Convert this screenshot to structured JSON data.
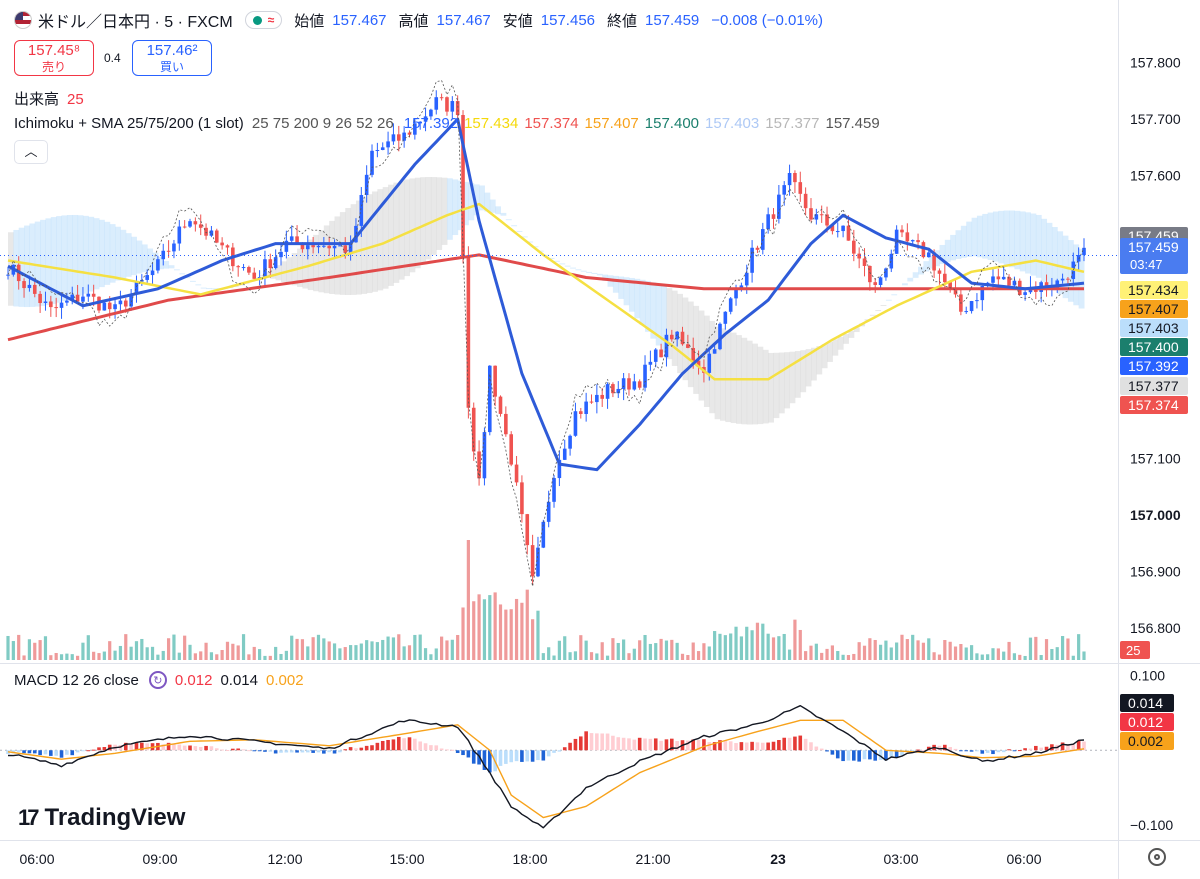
{
  "header": {
    "symbol": "米ドル／日本円 · 5 · FXCM",
    "open_label": "始値",
    "open": "157.467",
    "high_label": "高値",
    "high": "157.467",
    "low_label": "安値",
    "low": "157.456",
    "close_label": "終値",
    "close": "157.459",
    "change": "−0.008 (−0.01%)"
  },
  "trade": {
    "sell_price": "157.45⁸",
    "sell_label": "売り",
    "spread": "0.4",
    "buy_price": "157.46²",
    "buy_label": "買い"
  },
  "volume_label": {
    "name": "出来高",
    "value": "25"
  },
  "indicator": {
    "name": "Ichimoku + SMA 25/75/200 (1 slot)",
    "params": "25 75 200 9 26 52 26",
    "values": [
      {
        "v": "157.392",
        "color": "#2962ff"
      },
      {
        "v": "157.434",
        "color": "#f5d90a"
      },
      {
        "v": "157.374",
        "color": "#ef5350"
      },
      {
        "v": "157.407",
        "color": "#f7a21b"
      },
      {
        "v": "157.400",
        "color": "#1b7f6d"
      },
      {
        "v": "157.403",
        "color": "#aec9f5"
      },
      {
        "v": "157.377",
        "color": "#b7b7b7"
      },
      {
        "v": "157.459",
        "color": "#555555"
      }
    ]
  },
  "macd": {
    "label": "MACD",
    "params": "12 26 close",
    "hist": "0.012",
    "macd": "0.014",
    "signal": "0.002"
  },
  "brand": "TradingView",
  "chart_data": {
    "type": "candlestick",
    "price_axis_ticks": [
      "157.800",
      "157.700",
      "157.600",
      "157.459",
      "157.100",
      "157.000",
      "156.900",
      "156.800"
    ],
    "price_ylim": [
      156.74,
      157.84
    ],
    "time_ticks": [
      "06:00",
      "09:00",
      "12:00",
      "15:00",
      "18:00",
      "21:00",
      "23",
      "03:00",
      "06:00"
    ],
    "price_labels": [
      {
        "text": "157.459",
        "bg": "#787b86",
        "fg": "#ffffff"
      },
      {
        "text": "157.459",
        "sub": "03:47",
        "bg": "#4a7cf0",
        "fg": "#ffffff"
      },
      {
        "text": "157.434",
        "bg": "#fff176",
        "fg": "#131722"
      },
      {
        "text": "157.407",
        "bg": "#f7a21b",
        "fg": "#131722"
      },
      {
        "text": "157.403",
        "bg": "#bbdefb",
        "fg": "#131722"
      },
      {
        "text": "157.400",
        "bg": "#1b7f6d",
        "fg": "#ffffff"
      },
      {
        "text": "157.392",
        "bg": "#2962ff",
        "fg": "#ffffff"
      },
      {
        "text": "157.377",
        "bg": "#e0e0e0",
        "fg": "#131722"
      },
      {
        "text": "157.374",
        "bg": "#ef5350",
        "fg": "#ffffff"
      }
    ],
    "volume_last_label": "25",
    "macd_ticks": [
      "0.100",
      "−0.100"
    ],
    "macd_ylim": [
      -0.12,
      0.11
    ],
    "macd_labels": [
      {
        "text": "0.014",
        "bg": "#131722",
        "fg": "#ffffff"
      },
      {
        "text": "0.012",
        "bg": "#f23645",
        "fg": "#ffffff"
      },
      {
        "text": "0.002",
        "bg": "#f7a21b",
        "fg": "#131722"
      }
    ],
    "series_price_keys": [
      {
        "i": 0,
        "p": 157.44
      },
      {
        "i": 8,
        "p": 157.36
      },
      {
        "i": 14,
        "p": 157.39
      },
      {
        "i": 20,
        "p": 157.36
      },
      {
        "i": 28,
        "p": 157.44
      },
      {
        "i": 34,
        "p": 157.53
      },
      {
        "i": 40,
        "p": 157.47
      },
      {
        "i": 46,
        "p": 157.42
      },
      {
        "i": 52,
        "p": 157.48
      },
      {
        "i": 58,
        "p": 157.48
      },
      {
        "i": 64,
        "p": 157.47
      },
      {
        "i": 68,
        "p": 157.64
      },
      {
        "i": 74,
        "p": 157.67
      },
      {
        "i": 80,
        "p": 157.73
      },
      {
        "i": 84,
        "p": 157.72
      },
      {
        "i": 86,
        "p": 157.2
      },
      {
        "i": 88,
        "p": 157.05
      },
      {
        "i": 90,
        "p": 157.26
      },
      {
        "i": 94,
        "p": 157.1
      },
      {
        "i": 98,
        "p": 156.88
      },
      {
        "i": 102,
        "p": 157.08
      },
      {
        "i": 106,
        "p": 157.18
      },
      {
        "i": 112,
        "p": 157.22
      },
      {
        "i": 118,
        "p": 157.24
      },
      {
        "i": 124,
        "p": 157.32
      },
      {
        "i": 130,
        "p": 157.26
      },
      {
        "i": 136,
        "p": 157.4
      },
      {
        "i": 142,
        "p": 157.52
      },
      {
        "i": 146,
        "p": 157.59
      },
      {
        "i": 150,
        "p": 157.53
      },
      {
        "i": 156,
        "p": 157.5
      },
      {
        "i": 162,
        "p": 157.4
      },
      {
        "i": 166,
        "p": 157.49
      },
      {
        "i": 172,
        "p": 157.46
      },
      {
        "i": 178,
        "p": 157.36
      },
      {
        "i": 184,
        "p": 157.42
      },
      {
        "i": 190,
        "p": 157.4
      },
      {
        "i": 196,
        "p": 157.41
      },
      {
        "i": 201,
        "p": 157.46
      }
    ],
    "sma25_keys": [
      {
        "i": 0,
        "p": 157.44
      },
      {
        "i": 14,
        "p": 157.37
      },
      {
        "i": 28,
        "p": 157.4
      },
      {
        "i": 40,
        "p": 157.45
      },
      {
        "i": 50,
        "p": 157.48
      },
      {
        "i": 64,
        "p": 157.48
      },
      {
        "i": 76,
        "p": 157.62
      },
      {
        "i": 84,
        "p": 157.7
      },
      {
        "i": 88,
        "p": 157.52
      },
      {
        "i": 96,
        "p": 157.25
      },
      {
        "i": 103,
        "p": 157.09
      },
      {
        "i": 110,
        "p": 157.08
      },
      {
        "i": 118,
        "p": 157.16
      },
      {
        "i": 126,
        "p": 157.25
      },
      {
        "i": 134,
        "p": 157.32
      },
      {
        "i": 142,
        "p": 157.38
      },
      {
        "i": 150,
        "p": 157.48
      },
      {
        "i": 156,
        "p": 157.53
      },
      {
        "i": 164,
        "p": 157.49
      },
      {
        "i": 172,
        "p": 157.47
      },
      {
        "i": 180,
        "p": 157.41
      },
      {
        "i": 190,
        "p": 157.4
      },
      {
        "i": 201,
        "p": 157.41
      }
    ],
    "sma75_keys": [
      {
        "i": 0,
        "p": 157.45
      },
      {
        "i": 20,
        "p": 157.42
      },
      {
        "i": 36,
        "p": 157.39
      },
      {
        "i": 56,
        "p": 157.44
      },
      {
        "i": 70,
        "p": 157.48
      },
      {
        "i": 82,
        "p": 157.53
      },
      {
        "i": 88,
        "p": 157.55
      },
      {
        "i": 100,
        "p": 157.46
      },
      {
        "i": 112,
        "p": 157.38
      },
      {
        "i": 124,
        "p": 157.3
      },
      {
        "i": 132,
        "p": 157.24
      },
      {
        "i": 142,
        "p": 157.24
      },
      {
        "i": 154,
        "p": 157.31
      },
      {
        "i": 166,
        "p": 157.37
      },
      {
        "i": 180,
        "p": 157.43
      },
      {
        "i": 192,
        "p": 157.45
      },
      {
        "i": 201,
        "p": 157.43
      }
    ],
    "sma200_keys": [
      {
        "i": 0,
        "p": 157.31
      },
      {
        "i": 30,
        "p": 157.38
      },
      {
        "i": 60,
        "p": 157.42
      },
      {
        "i": 88,
        "p": 157.46
      },
      {
        "i": 108,
        "p": 157.42
      },
      {
        "i": 130,
        "p": 157.4
      },
      {
        "i": 160,
        "p": 157.4
      },
      {
        "i": 201,
        "p": 157.4
      }
    ],
    "macd_keys": [
      {
        "i": 0,
        "m": -0.005,
        "s": -0.002
      },
      {
        "i": 10,
        "m": -0.02,
        "s": -0.012
      },
      {
        "i": 20,
        "m": 0.005,
        "s": -0.004
      },
      {
        "i": 34,
        "m": 0.02,
        "s": 0.012
      },
      {
        "i": 46,
        "m": 0.012,
        "s": 0.014
      },
      {
        "i": 60,
        "m": 0.002,
        "s": 0.006
      },
      {
        "i": 74,
        "m": 0.04,
        "s": 0.022
      },
      {
        "i": 84,
        "m": 0.032,
        "s": 0.034
      },
      {
        "i": 90,
        "m": -0.03,
        "s": 0.0
      },
      {
        "i": 94,
        "m": -0.075,
        "s": -0.06
      },
      {
        "i": 100,
        "m": -0.105,
        "s": -0.09
      },
      {
        "i": 108,
        "m": -0.05,
        "s": -0.075
      },
      {
        "i": 118,
        "m": -0.015,
        "s": -0.03
      },
      {
        "i": 130,
        "m": 0.018,
        "s": 0.005
      },
      {
        "i": 140,
        "m": 0.035,
        "s": 0.025
      },
      {
        "i": 148,
        "m": 0.058,
        "s": 0.04
      },
      {
        "i": 156,
        "m": 0.025,
        "s": 0.04
      },
      {
        "i": 164,
        "m": -0.012,
        "s": 0.0
      },
      {
        "i": 174,
        "m": 0.004,
        "s": -0.004
      },
      {
        "i": 182,
        "m": -0.015,
        "s": -0.01
      },
      {
        "i": 192,
        "m": -0.004,
        "s": -0.008
      },
      {
        "i": 201,
        "m": 0.014,
        "s": 0.002
      }
    ]
  }
}
